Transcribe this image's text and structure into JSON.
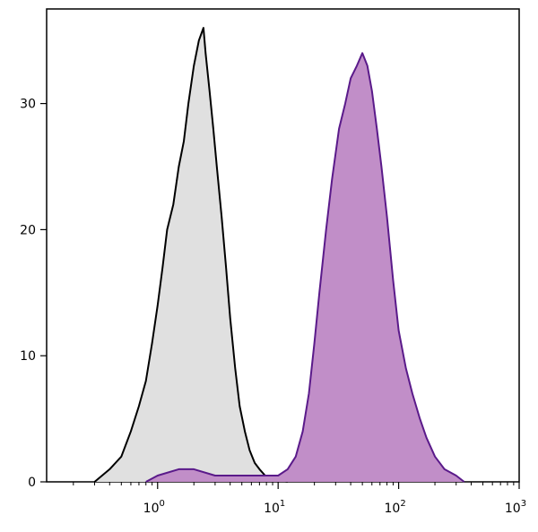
{
  "chart_data": {
    "type": "area",
    "xscale": "log",
    "xlim": [
      0.12,
      1000
    ],
    "ylim": [
      0,
      37.5
    ],
    "grid": false,
    "legend": "none",
    "x_ticks": [
      {
        "value": 1,
        "base": "10",
        "exp": "0"
      },
      {
        "value": 10,
        "base": "10",
        "exp": "1"
      },
      {
        "value": 100,
        "base": "10",
        "exp": "2"
      },
      {
        "value": 1000,
        "base": "10",
        "exp": "3"
      }
    ],
    "y_ticks": [
      {
        "value": 0,
        "label": "0"
      },
      {
        "value": 10,
        "label": "10"
      },
      {
        "value": 20,
        "label": "20"
      },
      {
        "value": 30,
        "label": "30"
      }
    ],
    "series": [
      {
        "role": "control",
        "stroke": "#000000",
        "fill": "#e0e0e0",
        "x": [
          0.3,
          0.4,
          0.5,
          0.6,
          0.7,
          0.8,
          0.9,
          1.0,
          1.1,
          1.2,
          1.35,
          1.5,
          1.65,
          1.8,
          2.0,
          2.2,
          2.4,
          2.5,
          2.7,
          2.9,
          3.1,
          3.4,
          3.7,
          4.0,
          4.4,
          4.8,
          5.3,
          5.8,
          6.4,
          7.0,
          7.8,
          8.6,
          9.5,
          10.5,
          12
        ],
        "y": [
          0,
          1,
          2,
          4,
          6,
          8,
          11,
          14,
          17,
          20,
          22,
          25,
          27,
          30,
          33,
          35,
          36,
          34,
          31,
          28,
          25,
          21,
          17,
          13,
          9,
          6,
          4,
          2.5,
          1.5,
          1,
          0.5,
          0.3,
          0.2,
          0.1,
          0
        ]
      },
      {
        "role": "stained",
        "stroke": "#5a1a8a",
        "fill": "#c18ec8",
        "x": [
          0.8,
          1.0,
          1.5,
          2.0,
          3.0,
          5.0,
          8.0,
          10,
          12,
          14,
          16,
          18,
          20,
          22,
          25,
          28,
          32,
          36,
          40,
          45,
          50,
          55,
          60,
          66,
          72,
          80,
          90,
          100,
          115,
          130,
          150,
          170,
          200,
          240,
          300,
          350
        ],
        "y": [
          0,
          0.5,
          1,
          1,
          0.5,
          0.5,
          0.5,
          0.5,
          1,
          2,
          4,
          7,
          11,
          15,
          20,
          24,
          28,
          30,
          32,
          33,
          34,
          33,
          31,
          28,
          25,
          21,
          16,
          12,
          9,
          7,
          5,
          3.5,
          2,
          1,
          0.5,
          0
        ]
      }
    ]
  }
}
